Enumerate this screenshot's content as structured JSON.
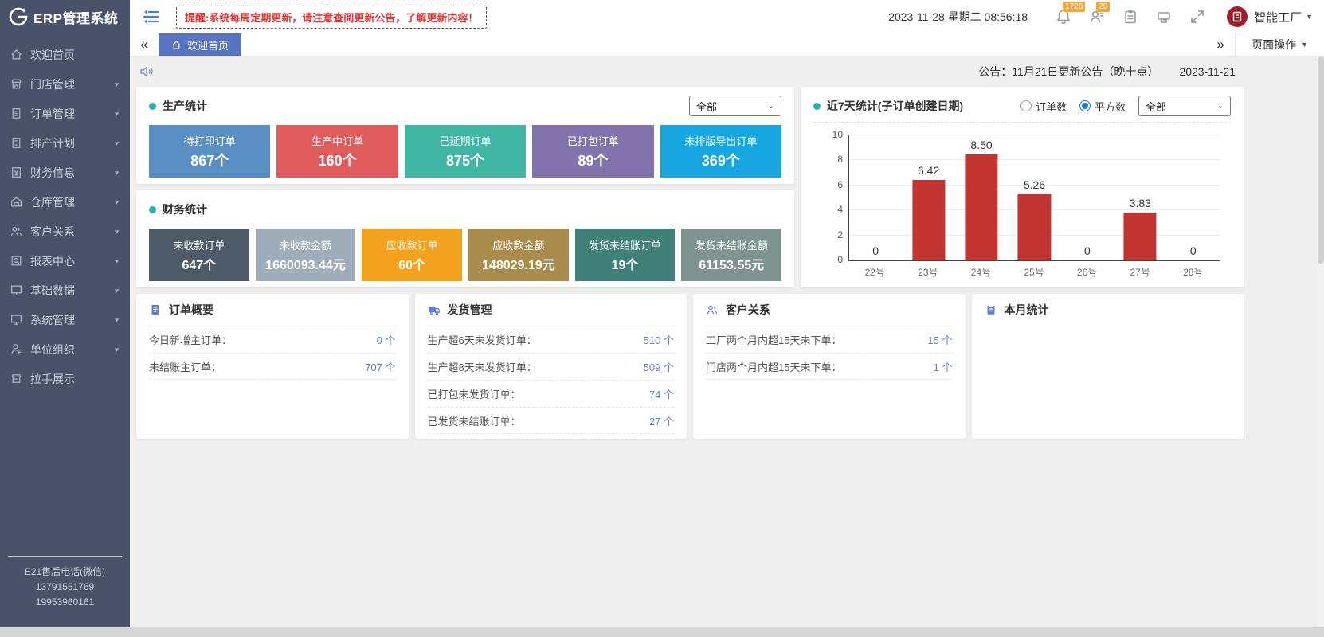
{
  "glyphs": {
    "chevrons_left": "«",
    "chevrons_right": "»",
    "caret_down": "▼",
    "arrow_down_small": "▼"
  },
  "header": {
    "logo_text": "ERP管理系统",
    "reminder": "提醒:系统每周定期更新，请注意查阅更新公告，了解更新内容！",
    "datetime": "2023-11-28 星期二  08:56:18",
    "bell_badge": "1726",
    "contact_badge": "20",
    "user_name": "智能工厂"
  },
  "tabs": {
    "active_label": "欢迎首页",
    "page_actions_label": "页面操作"
  },
  "announcement": {
    "text": "公告：11月21日更新公告（晚十点）",
    "date": "2023-11-21"
  },
  "production": {
    "title": "生产统计",
    "filter_value": "全部",
    "cards": [
      {
        "label": "待打印订单",
        "value": "867个",
        "color": "#5a8fc4"
      },
      {
        "label": "生产中订单",
        "value": "160个",
        "color": "#e05c5c"
      },
      {
        "label": "已延期订单",
        "value": "875个",
        "color": "#3fb7a4"
      },
      {
        "label": "已打包订单",
        "value": "89个",
        "color": "#8273ac"
      },
      {
        "label": "未排版导出订单",
        "value": "369个",
        "color": "#16a7e0"
      }
    ]
  },
  "finance": {
    "title": "财务统计",
    "cards": [
      {
        "label": "未收款订单",
        "value": "647个",
        "color": "#4d5a68"
      },
      {
        "label": "未收款金额",
        "value": "1660093.44元",
        "color": "#9fadbb"
      },
      {
        "label": "应收款订单",
        "value": "60个",
        "color": "#f2a21c"
      },
      {
        "label": "应收款金额",
        "value": "148029.19元",
        "color": "#a98c4c"
      },
      {
        "label": "发货未结账订单",
        "value": "19个",
        "color": "#3f8078"
      },
      {
        "label": "发货未结账金额",
        "value": "61153.55元",
        "color": "#7f948e"
      }
    ]
  },
  "chart_panel": {
    "title": "近7天统计(子订单创建日期)",
    "radio_options": [
      "订单数",
      "平方数"
    ],
    "radio_selected": "平方数",
    "filter_value": "全部"
  },
  "chart_data": {
    "type": "bar",
    "title": "近7天统计(子订单创建日期)",
    "categories": [
      "22号",
      "23号",
      "24号",
      "25号",
      "26号",
      "27号",
      "28号"
    ],
    "values": [
      0,
      6.42,
      8.5,
      5.26,
      0,
      3.83,
      0
    ],
    "value_labels": [
      "0",
      "6.42",
      "8.50",
      "5.26",
      "0",
      "3.83",
      "0"
    ],
    "bar_color": "#c23531",
    "xlabel": "",
    "ylabel": "",
    "ylim": [
      0,
      10
    ],
    "yticks": [
      0,
      2,
      4,
      6,
      8,
      10
    ],
    "grid": true,
    "legend_position": "none"
  },
  "panels": [
    {
      "title": "订单概要",
      "icon": "document-icon",
      "rows": [
        {
          "label": "今日新增主订单：",
          "value": "0 个"
        },
        {
          "label": "未结账主订单：",
          "value": "707 个"
        }
      ]
    },
    {
      "title": "发货管理",
      "icon": "truck-icon",
      "rows": [
        {
          "label": "生产超6天未发货订单：",
          "value": "510 个"
        },
        {
          "label": "生产超8天未发货订单：",
          "value": "509 个"
        },
        {
          "label": "已打包未发货订单：",
          "value": "74 个"
        },
        {
          "label": "已发货未结账订单：",
          "value": "27 个"
        }
      ]
    },
    {
      "title": "客户关系",
      "icon": "customer-icon",
      "rows": [
        {
          "label": "工厂两个月内超15天未下单：",
          "value": "15 个"
        },
        {
          "label": "门店两个月内超15天未下单：",
          "value": "1 个"
        }
      ]
    },
    {
      "title": "本月统计",
      "icon": "clipboard-icon",
      "rows": []
    }
  ],
  "sidebar": {
    "items": [
      {
        "label": "欢迎首页",
        "icon": "home-icon",
        "has_children": false
      },
      {
        "label": "门店管理",
        "icon": "store-icon",
        "has_children": true
      },
      {
        "label": "订单管理",
        "icon": "order-icon",
        "has_children": true
      },
      {
        "label": "排产计划",
        "icon": "schedule-icon",
        "has_children": true
      },
      {
        "label": "财务信息",
        "icon": "finance-icon",
        "has_children": true
      },
      {
        "label": "仓库管理",
        "icon": "warehouse-icon",
        "has_children": true
      },
      {
        "label": "客户关系",
        "icon": "customer-icon",
        "has_children": true
      },
      {
        "label": "报表中心",
        "icon": "report-icon",
        "has_children": true
      },
      {
        "label": "基础数据",
        "icon": "data-icon",
        "has_children": true
      },
      {
        "label": "系统管理",
        "icon": "system-icon",
        "has_children": true
      },
      {
        "label": "单位组织",
        "icon": "organization-icon",
        "has_children": true
      },
      {
        "label": "拉手展示",
        "icon": "handle-icon",
        "has_children": false
      }
    ],
    "footer_lines": [
      "E21售后电话(微信)",
      "13791551769",
      "19953960161"
    ]
  }
}
